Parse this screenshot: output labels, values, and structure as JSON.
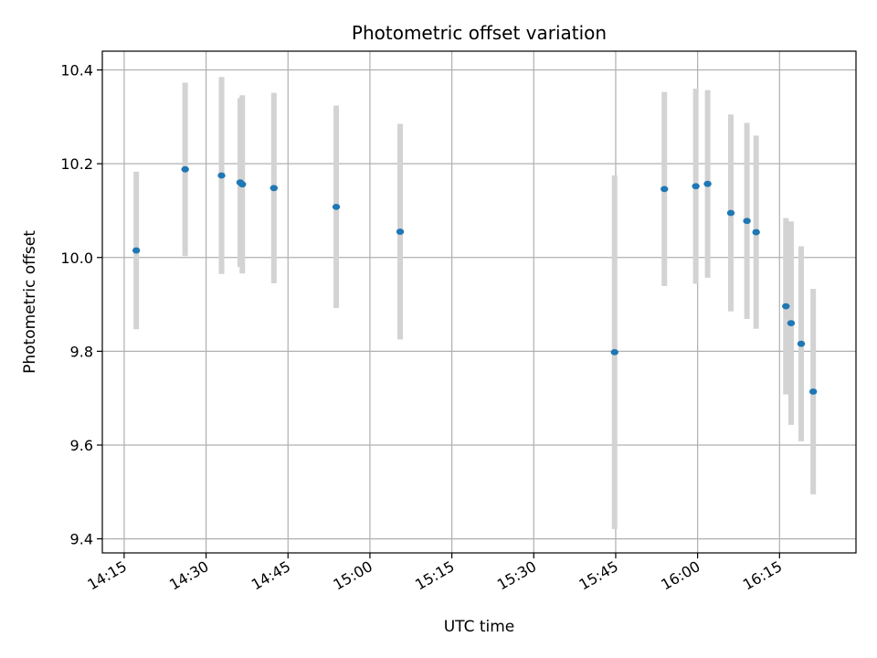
{
  "chart_data": {
    "type": "scatter",
    "title": "Photometric offset variation",
    "xlabel": "UTC time",
    "ylabel": "Photometric offset",
    "grid": true,
    "legend": "none",
    "xlim": [
      "14:11",
      "16:29"
    ],
    "ylim": [
      9.37,
      10.44
    ],
    "x_ticks": [
      "14:15",
      "14:30",
      "14:45",
      "15:00",
      "15:15",
      "15:30",
      "15:45",
      "16:00",
      "16:15"
    ],
    "y_ticks": [
      9.4,
      9.6,
      9.8,
      10.0,
      10.2,
      10.4
    ],
    "y_tick_labels": [
      "9.4",
      "9.6",
      "9.8",
      "10.0",
      "10.2",
      "10.4"
    ],
    "point_color": "#1f77b4",
    "errorbar_color": "#d3d3d3",
    "series": [
      {
        "points": [
          {
            "t": "14:17:13",
            "y": 10.015,
            "yerr": 0.168
          },
          {
            "t": "14:26:10",
            "y": 10.188,
            "yerr": 0.185
          },
          {
            "t": "14:32:50",
            "y": 10.175,
            "yerr": 0.21
          },
          {
            "t": "14:36:15",
            "y": 10.16,
            "yerr": 0.18
          },
          {
            "t": "14:36:38",
            "y": 10.156,
            "yerr": 0.19
          },
          {
            "t": "14:42:25",
            "y": 10.148,
            "yerr": 0.203
          },
          {
            "t": "14:53:50",
            "y": 10.108,
            "yerr": 0.216
          },
          {
            "t": "15:05:32",
            "y": 10.055,
            "yerr": 0.23
          },
          {
            "t": "15:44:48",
            "y": 9.798,
            "yerr": 0.377
          },
          {
            "t": "15:53:55",
            "y": 10.146,
            "yerr": 0.207
          },
          {
            "t": "15:59:40",
            "y": 10.152,
            "yerr": 0.208
          },
          {
            "t": "16:01:50",
            "y": 10.157,
            "yerr": 0.2
          },
          {
            "t": "16:06:05",
            "y": 10.095,
            "yerr": 0.21
          },
          {
            "t": "16:09:02",
            "y": 10.078,
            "yerr": 0.209
          },
          {
            "t": "16:10:43",
            "y": 10.054,
            "yerr": 0.206
          },
          {
            "t": "16:16:10",
            "y": 9.896,
            "yerr": 0.188
          },
          {
            "t": "16:17:07",
            "y": 9.86,
            "yerr": 0.217
          },
          {
            "t": "16:18:58",
            "y": 9.816,
            "yerr": 0.208
          },
          {
            "t": "16:21:10",
            "y": 9.714,
            "yerr": 0.219
          }
        ]
      }
    ]
  }
}
